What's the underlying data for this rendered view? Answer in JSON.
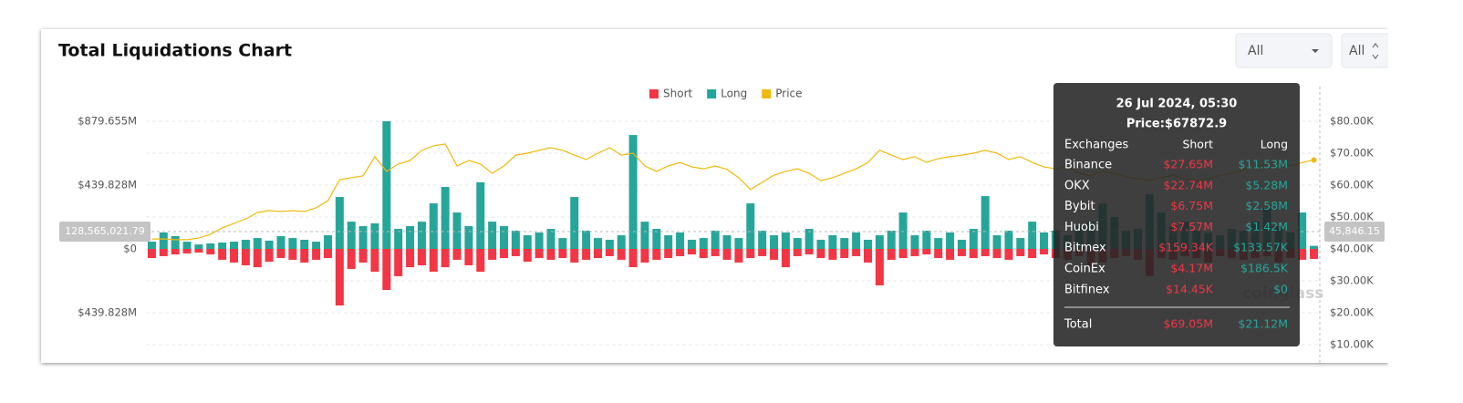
{
  "page": {
    "dropdowns": [
      "All",
      "All"
    ],
    "watermark": "coinglass"
  },
  "chart_data": {
    "type": "bar",
    "title": "Total Liquidations Chart",
    "stacked": true,
    "legend": "top",
    "grid": true,
    "ylim": [
      -659.74,
      879.655
    ],
    "yticks": [
      {
        "value": 879.655,
        "label": "$879.655M"
      },
      {
        "value": 439.828,
        "label": "$439.828M"
      },
      {
        "value": 0,
        "label": "$0"
      },
      {
        "value": -439.828,
        "label": "$439.828M"
      }
    ],
    "y2lim": [
      10000,
      80000
    ],
    "y2ticks": [
      {
        "value": 80000,
        "label": "$80.00K"
      },
      {
        "value": 70000,
        "label": "$70.00K"
      },
      {
        "value": 60000,
        "label": "$60.00K"
      },
      {
        "value": 50000,
        "label": "$50.00K"
      },
      {
        "value": 40000,
        "label": "$40.00K"
      },
      {
        "value": 30000,
        "label": "$30.00K"
      },
      {
        "value": 20000,
        "label": "$20.00K"
      },
      {
        "value": 10000,
        "label": "$10.00K"
      }
    ],
    "series": [
      {
        "name": "Short",
        "color": "#f23645",
        "values": [
          -63,
          -50,
          -38,
          -31,
          -25,
          -38,
          -75,
          -94,
          -113,
          -126,
          -88,
          -63,
          -75,
          -94,
          -75,
          -63,
          -390,
          -138,
          -94,
          -157,
          -283,
          -188,
          -126,
          -113,
          -157,
          -126,
          -75,
          -113,
          -157,
          -75,
          -63,
          -50,
          -88,
          -63,
          -75,
          -63,
          -94,
          -75,
          -63,
          -50,
          -75,
          -126,
          -94,
          -75,
          -63,
          -50,
          -38,
          -63,
          -50,
          -75,
          -94,
          -63,
          -50,
          -75,
          -126,
          -50,
          -38,
          -63,
          -75,
          -63,
          -50,
          -94,
          -251,
          -75,
          -63,
          -50,
          -38,
          -63,
          -75,
          -50,
          -63,
          -50,
          -63,
          -75,
          -50,
          -63,
          -38,
          -63,
          -75,
          -50,
          -126,
          -94,
          -63,
          -50,
          -75,
          -188,
          -63,
          -75,
          -50,
          -63,
          -94,
          -50,
          -63,
          -75,
          -63,
          -50,
          -94,
          -63,
          -75,
          -69.05
        ]
      },
      {
        "name": "Long",
        "color": "#26a69a",
        "values": [
          50,
          113,
          88,
          50,
          31,
          38,
          44,
          50,
          63,
          75,
          57,
          88,
          75,
          63,
          50,
          94,
          358,
          188,
          157,
          176,
          879.655,
          138,
          157,
          188,
          314,
          427,
          251,
          157,
          459,
          188,
          157,
          126,
          94,
          113,
          138,
          75,
          358,
          126,
          75,
          63,
          94,
          785,
          188,
          138,
          94,
          113,
          63,
          75,
          126,
          94,
          75,
          314,
          126,
          94,
          113,
          75,
          138,
          63,
          94,
          75,
          113,
          63,
          94,
          126,
          251,
          94,
          126,
          75,
          113,
          63,
          138,
          364,
          94,
          126,
          75,
          188,
          113,
          126,
          94,
          157,
          188,
          314,
          220,
          126,
          138,
          377,
          251,
          157,
          188,
          126,
          113,
          94,
          138,
          126,
          188,
          283,
          157,
          113,
          251,
          21.12
        ]
      },
      {
        "name": "Price",
        "color": "#f0b90b",
        "axis": "y2",
        "type": "line",
        "values": [
          43100,
          43100,
          42900,
          42900,
          43400,
          44600,
          46600,
          48000,
          49400,
          51400,
          52000,
          51700,
          52000,
          51700,
          52900,
          55100,
          61700,
          62300,
          62900,
          68900,
          64300,
          66600,
          67700,
          70900,
          72300,
          72900,
          66000,
          67700,
          66600,
          63700,
          66000,
          69400,
          70000,
          70900,
          71700,
          70900,
          69400,
          68000,
          70000,
          71700,
          69400,
          70000,
          66000,
          64300,
          66000,
          67100,
          65700,
          65100,
          66000,
          64900,
          62300,
          58600,
          60900,
          63100,
          64300,
          65100,
          63700,
          61400,
          62300,
          63700,
          65100,
          67100,
          70900,
          69400,
          68000,
          68900,
          67100,
          68300,
          68900,
          69400,
          70000,
          70900,
          70000,
          68000,
          68900,
          67100,
          65700,
          65100,
          66000,
          63700,
          62900,
          64300,
          63700,
          62600,
          62000,
          61400,
          62300,
          63100,
          62000,
          61400,
          62000,
          63100,
          63700,
          64900,
          65700,
          66600,
          67100,
          66000,
          67100,
          67872.9
        ]
      }
    ],
    "crosshair": {
      "y_label": "128,565,021.79",
      "y2_label": "45,846.15"
    },
    "tooltip": {
      "date": "26 Jul 2024, 05:30",
      "price": "Price:$67872.9",
      "header": [
        "Exchanges",
        "Short",
        "Long"
      ],
      "rows": [
        [
          "Binance",
          "$27.65M",
          "$11.53M"
        ],
        [
          "OKX",
          "$22.74M",
          "$5.28M"
        ],
        [
          "Bybit",
          "$6.75M",
          "$2.58M"
        ],
        [
          "Huobi",
          "$7.57M",
          "$1.42M"
        ],
        [
          "Bitmex",
          "$159.34K",
          "$133.57K"
        ],
        [
          "CoinEx",
          "$4.17M",
          "$186.5K"
        ],
        [
          "Bitfinex",
          "$14.45K",
          "$0"
        ]
      ],
      "total": [
        "Total",
        "$69.05M",
        "$21.12M"
      ]
    }
  }
}
